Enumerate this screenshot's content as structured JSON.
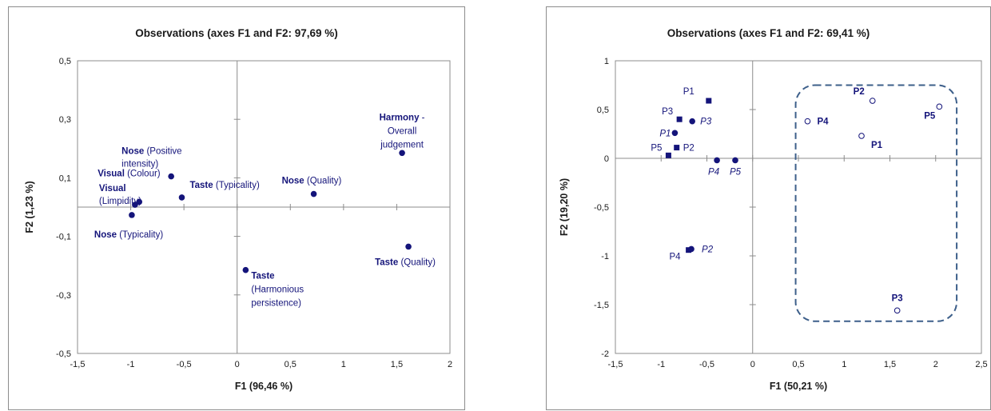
{
  "colors": {
    "navy": "#14147a",
    "dashed": "#3d5f8a",
    "axis": "#8c8c8c",
    "text": "#1a1a1a"
  },
  "chart_data": [
    {
      "type": "scatter",
      "title": "Observations (axes F1 and F2: 97,69 %)",
      "xlabel": "F1 (96,46 %)",
      "ylabel": "F2 (1,23 %)",
      "xlim": [
        -1.5,
        2
      ],
      "ylim": [
        -0.5,
        0.5
      ],
      "xticks": [
        -1.5,
        -1,
        -0.5,
        0,
        0.5,
        1,
        1.5,
        2
      ],
      "yticks": [
        -0.5,
        -0.3,
        -0.1,
        0.1,
        0.3,
        0.5
      ],
      "xtick_labels": [
        "-1,5",
        "-1",
        "-0,5",
        "0",
        "0,5",
        "1",
        "1,5",
        "2"
      ],
      "ytick_labels": [
        "-0,5",
        "-0,3",
        "-0,1",
        "0,1",
        "0,3",
        "0,5"
      ],
      "points": [
        {
          "x": -0.62,
          "y": 0.105,
          "lines": [
            [
              {
                "t": "Nose",
                "b": true
              },
              {
                "t": " (Positive"
              }
            ],
            [
              {
                "t": "intensity)"
              }
            ]
          ]
        },
        {
          "x": -0.52,
          "y": 0.033,
          "lines": [
            [
              {
                "t": "Taste",
                "b": true
              },
              {
                "t": " (Typicality)"
              }
            ]
          ]
        },
        {
          "x": -0.92,
          "y": 0.018,
          "lines": [
            [
              {
                "t": "Visual",
                "b": true
              },
              {
                "t": " (Colour)"
              }
            ]
          ]
        },
        {
          "x": -0.96,
          "y": 0.008,
          "lines": [
            [
              {
                "t": "Visual",
                "b": true
              }
            ],
            [
              {
                "t": "(Limpidity)"
              }
            ]
          ]
        },
        {
          "x": -0.99,
          "y": -0.027,
          "lines": [
            [
              {
                "t": "Nose",
                "b": true
              },
              {
                "t": " (Typicality)"
              }
            ]
          ]
        },
        {
          "x": 0.72,
          "y": 0.045,
          "lines": [
            [
              {
                "t": "Nose",
                "b": true
              },
              {
                "t": " (Quality)"
              }
            ]
          ]
        },
        {
          "x": 1.55,
          "y": 0.185,
          "lines": [
            [
              {
                "t": "Harmony",
                "b": true
              },
              {
                "t": " -"
              }
            ],
            [
              {
                "t": "Overall"
              }
            ],
            [
              {
                "t": "judgement"
              }
            ]
          ]
        },
        {
          "x": 1.61,
          "y": -0.135,
          "lines": [
            [
              {
                "t": "Taste",
                "b": true
              },
              {
                "t": " (Quality)"
              }
            ]
          ]
        },
        {
          "x": 0.08,
          "y": -0.215,
          "lines": [
            [
              {
                "t": "Taste",
                "b": true
              }
            ],
            [
              {
                "t": "(Harmonious"
              }
            ],
            [
              {
                "t": "persistence)"
              }
            ]
          ]
        }
      ]
    },
    {
      "type": "scatter",
      "title": "Observations (axes F1 and F2: 69,41 %)",
      "xlabel": "F1 (50,21 %)",
      "ylabel": "F2 (19,20 %)",
      "xlim": [
        -1.5,
        2.5
      ],
      "ylim": [
        -2,
        1
      ],
      "xticks": [
        -1.5,
        -1,
        -0.5,
        0,
        0.5,
        1,
        1.5,
        2,
        2.5
      ],
      "yticks": [
        -2,
        -1.5,
        -1,
        -0.5,
        0,
        0.5,
        1
      ],
      "xtick_labels": [
        "-1,5",
        "-1",
        "-0,5",
        "0",
        "0,5",
        "1",
        "1,5",
        "2",
        "2,5"
      ],
      "ytick_labels": [
        "-2",
        "-1,5",
        "-1",
        "-0,5",
        "0",
        "0,5",
        "1"
      ],
      "points": [
        {
          "label": "P1",
          "x": -0.48,
          "y": 0.59,
          "marker": "square"
        },
        {
          "label": "P3",
          "x": -0.8,
          "y": 0.4,
          "marker": "square"
        },
        {
          "label": "P2",
          "x": -0.83,
          "y": 0.11,
          "marker": "square"
        },
        {
          "label": "P5",
          "x": -0.92,
          "y": 0.03,
          "marker": "square"
        },
        {
          "label": "P4",
          "x": -0.7,
          "y": -0.94,
          "marker": "square"
        },
        {
          "label": "P3",
          "x": -0.66,
          "y": 0.38,
          "marker": "dot"
        },
        {
          "label": "P1",
          "x": -0.85,
          "y": 0.26,
          "marker": "dot"
        },
        {
          "label": "P4",
          "x": -0.39,
          "y": -0.02,
          "marker": "dot"
        },
        {
          "label": "P5",
          "x": -0.19,
          "y": -0.02,
          "marker": "dot"
        },
        {
          "label": "P2",
          "x": -0.67,
          "y": -0.93,
          "marker": "dot"
        },
        {
          "label": "P2",
          "x": 1.31,
          "y": 0.59,
          "marker": "circle"
        },
        {
          "label": "P4",
          "x": 0.6,
          "y": 0.38,
          "marker": "circle"
        },
        {
          "label": "P1",
          "x": 1.19,
          "y": 0.23,
          "marker": "circle"
        },
        {
          "label": "P5",
          "x": 2.04,
          "y": 0.53,
          "marker": "circle"
        },
        {
          "label": "P3",
          "x": 1.58,
          "y": -1.56,
          "marker": "circle"
        }
      ]
    }
  ]
}
